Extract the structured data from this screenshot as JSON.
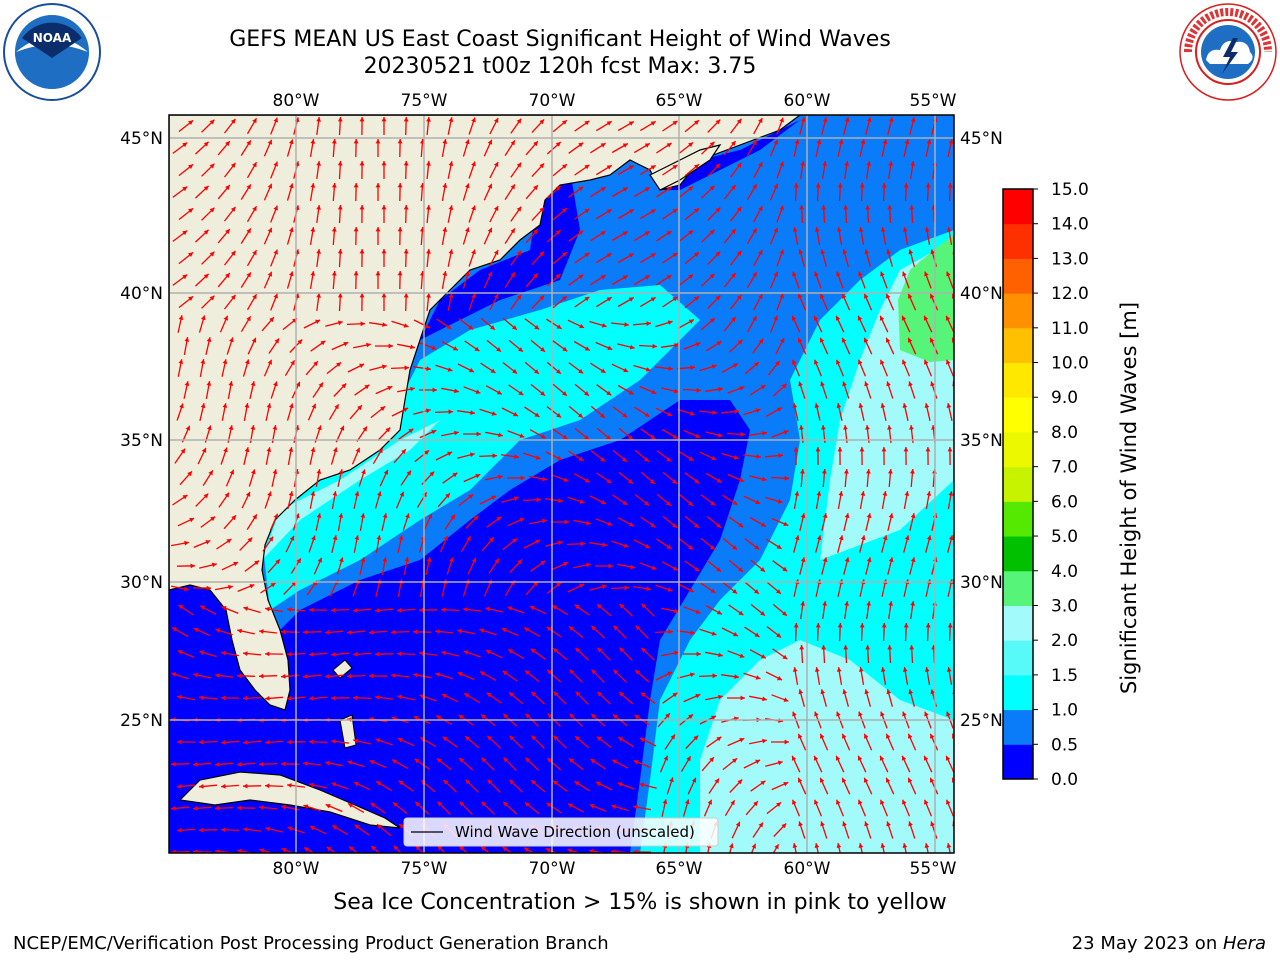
{
  "title": {
    "line1": "GEFS MEAN US East Coast Significant Height of Wind Waves",
    "line2": "20230521 t00z 120h fcst   Max: 3.75"
  },
  "map": {
    "lon_labels": [
      "80°W",
      "75°W",
      "70°W",
      "65°W",
      "60°W",
      "55°W"
    ],
    "lat_labels": [
      "45°N",
      "40°N",
      "35°N",
      "30°N",
      "25°N"
    ],
    "legend_label": "Wind Wave Direction (unscaled)",
    "arrow_color": "#ff0000",
    "land_color": "#efeddb"
  },
  "colorbar": {
    "label": "Significant Height of Wind Waves [m]",
    "ticks": [
      "0.0",
      "0.5",
      "1.0",
      "1.5",
      "2.0",
      "3.0",
      "4.0",
      "5.0",
      "6.0",
      "7.0",
      "8.0",
      "9.0",
      "10.0",
      "11.0",
      "12.0",
      "13.0",
      "14.0",
      "15.0"
    ],
    "colors": [
      "#0000ff",
      "#0a7cfa",
      "#00ffff",
      "#57f9f9",
      "#a3fafa",
      "#56f57a",
      "#00c000",
      "#55e800",
      "#c7f200",
      "#ecf800",
      "#ffff00",
      "#ffe800",
      "#ffc000",
      "#ff9000",
      "#ff6000",
      "#ff3000",
      "#ff0000"
    ]
  },
  "note": "Sea Ice Concentration > 15% is shown in pink to yellow",
  "footer": {
    "left": "NCEP/EMC/Verification Post Processing Product Generation Branch",
    "right_date": "23 May 2023 on ",
    "right_host": "Hera"
  },
  "logos": {
    "left": "NOAA",
    "right": "NATIONAL WEATHER SERVICE"
  }
}
